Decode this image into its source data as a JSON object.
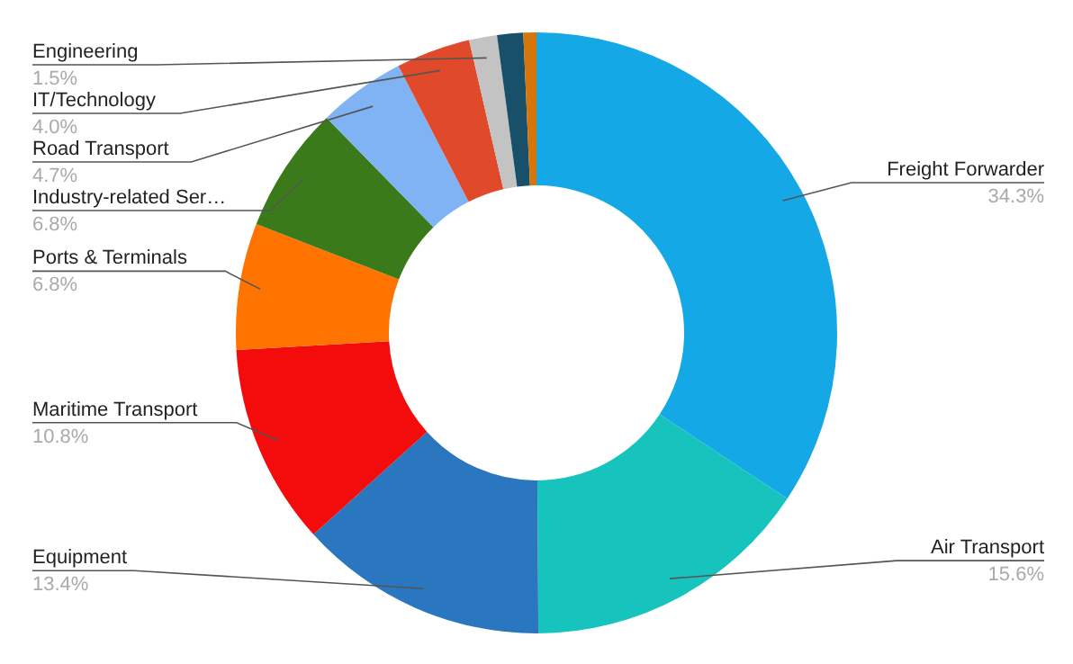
{
  "chart_data": {
    "type": "donut",
    "categories": [
      "Freight Forwarder",
      "Air Transport",
      "Equipment",
      "Maritime Transport",
      "Ports & Terminals",
      "Industry-related Ser…",
      "Road Transport",
      "IT/Technology",
      "Engineering",
      null,
      null
    ],
    "values": [
      34.3,
      15.6,
      13.4,
      10.8,
      6.8,
      6.8,
      4.7,
      4.0,
      1.5,
      1.4,
      0.7
    ],
    "value_labels": [
      "34.3%",
      "15.6%",
      "13.4%",
      "10.8%",
      "6.8%",
      "6.8%",
      "4.7%",
      "4.0%",
      "1.5%",
      null,
      null
    ],
    "colors": [
      "#14a8e6",
      "#17c4bd",
      "#2a76bf",
      "#f40b0b",
      "#ff7300",
      "#3a7a1a",
      "#80b3f4",
      "#e04a2b",
      "#c3c3c3",
      "#18506a",
      "#d4760c"
    ],
    "legend": false
  }
}
